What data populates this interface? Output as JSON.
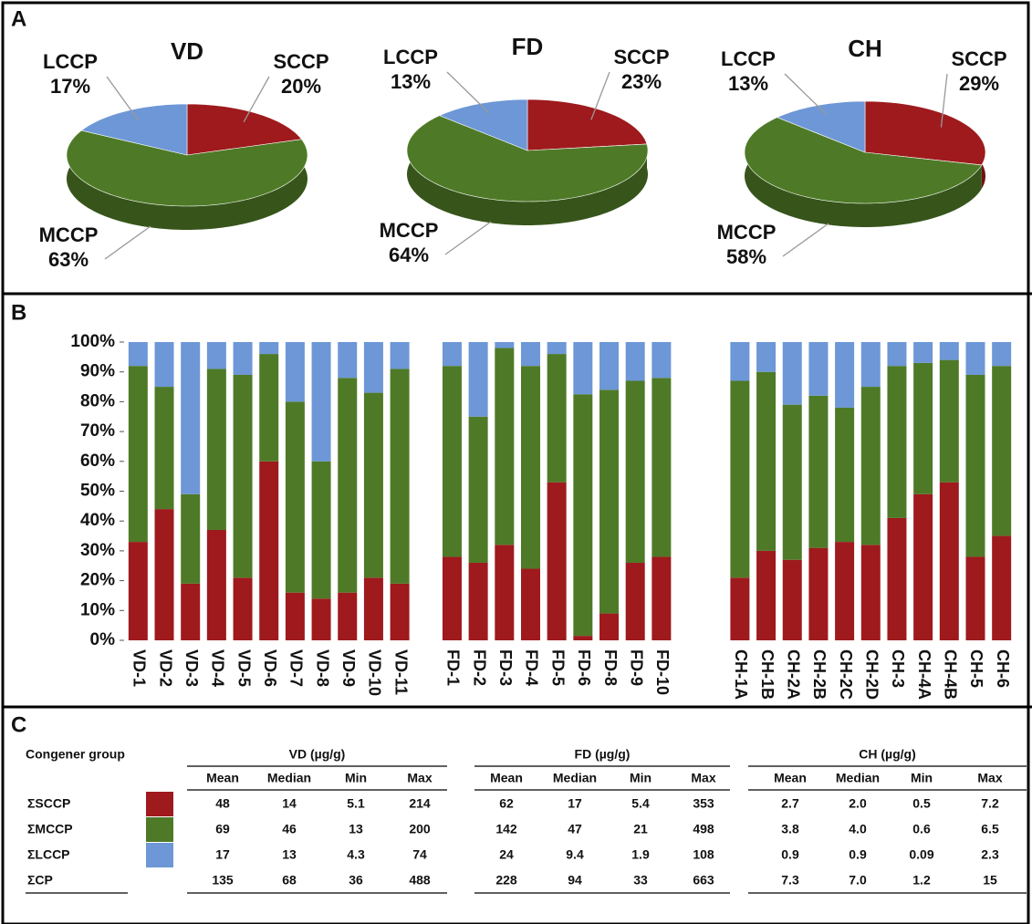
{
  "panels": [
    "A",
    "B",
    "C"
  ],
  "chart_data": [
    {
      "type": "pie",
      "title": "VD",
      "categories": [
        "SCCP",
        "MCCP",
        "LCCP"
      ],
      "values": [
        20,
        63,
        17
      ],
      "value_labels": [
        "20%",
        "63%",
        "17%"
      ],
      "colors": [
        "#9e1a1d",
        "#4e7a27",
        "#6d97d6"
      ]
    },
    {
      "type": "pie",
      "title": "FD",
      "categories": [
        "SCCP",
        "MCCP",
        "LCCP"
      ],
      "values": [
        23,
        64,
        13
      ],
      "value_labels": [
        "23%",
        "64%",
        "13%"
      ],
      "colors": [
        "#9e1a1d",
        "#4e7a27",
        "#6d97d6"
      ]
    },
    {
      "type": "pie",
      "title": "CH",
      "categories": [
        "SCCP",
        "MCCP",
        "LCCP"
      ],
      "values": [
        29,
        58,
        13
      ],
      "value_labels": [
        "29%",
        "58%",
        "13%"
      ],
      "colors": [
        "#9e1a1d",
        "#4e7a27",
        "#6d97d6"
      ]
    },
    {
      "type": "bar",
      "stacked": true,
      "categories": [
        "VD-1",
        "VD-2",
        "VD-3",
        "VD-4",
        "VD-5",
        "VD-6",
        "VD-7",
        "VD-8",
        "VD-9",
        "VD-10",
        "VD-11",
        null,
        "FD-1",
        "FD-2",
        "FD-3",
        "FD-4",
        "FD-5",
        "FD-6",
        "FD-8",
        "FD-9",
        "FD-10",
        null,
        null,
        "CH-1A",
        "CH-1B",
        "CH-2A",
        "CH-2B",
        "CH-2C",
        "CH-2D",
        "CH-3",
        "CH-4A",
        "CH-4B",
        "CH-5",
        "CH-6"
      ],
      "series": [
        {
          "color": "#9e1a1d",
          "values": [
            33,
            44,
            19,
            37,
            21,
            60,
            16,
            14,
            16,
            21,
            19,
            null,
            28,
            26,
            32,
            24,
            53,
            1.5,
            9,
            26,
            28,
            null,
            null,
            21,
            30,
            27,
            31,
            33,
            32,
            41,
            49,
            53,
            28,
            35
          ]
        },
        {
          "color": "#4e7a27",
          "values": [
            59,
            41,
            30,
            54,
            68,
            36,
            64,
            46,
            72,
            62,
            72,
            null,
            64,
            49,
            66,
            68,
            43,
            81,
            75,
            61,
            60,
            null,
            null,
            66,
            60,
            52,
            51,
            45,
            53,
            51,
            44,
            41,
            61,
            57
          ]
        },
        {
          "color": "#6d97d6",
          "values": [
            8,
            15,
            51,
            9,
            11,
            4,
            20,
            40,
            12,
            17,
            9,
            null,
            8,
            25,
            2,
            8,
            4,
            17.5,
            16,
            13,
            12,
            null,
            null,
            13,
            10,
            21,
            18,
            22,
            15,
            8,
            7,
            6,
            11,
            8
          ]
        }
      ],
      "ylim": [
        0,
        100
      ],
      "yticks": [
        {
          "value": 0,
          "label": "0%"
        },
        {
          "value": 10,
          "label": "10%"
        },
        {
          "value": 20,
          "label": "20%"
        },
        {
          "value": 30,
          "label": "30%"
        },
        {
          "value": 40,
          "label": "40%"
        },
        {
          "value": 50,
          "label": "50%"
        },
        {
          "value": 60,
          "label": "60%"
        },
        {
          "value": 70,
          "label": "70%"
        },
        {
          "value": 80,
          "label": "80%"
        },
        {
          "value": 90,
          "label": "90%"
        },
        {
          "value": 100,
          "label": "100%"
        }
      ]
    }
  ],
  "table": {
    "header": "Congener group",
    "groups": [
      {
        "name": "VD (µg/g)",
        "columns": [
          "Mean",
          "Median",
          "Min",
          "Max"
        ]
      },
      {
        "name": "FD (µg/g)",
        "columns": [
          "Mean",
          "Median",
          "Min",
          "Max"
        ]
      },
      {
        "name": "CH (µg/g)",
        "columns": [
          "Mean",
          "Median",
          "Min",
          "Max"
        ]
      }
    ],
    "rows": [
      {
        "label": "ΣSCCP",
        "color": "#9e1a1d",
        "cells": [
          "48",
          "14",
          "5.1",
          "214",
          "62",
          "17",
          "5.4",
          "353",
          "2.7",
          "2.0",
          "0.5",
          "7.2"
        ]
      },
      {
        "label": "ΣMCCP",
        "color": "#4e7a27",
        "cells": [
          "69",
          "46",
          "13",
          "200",
          "142",
          "47",
          "21",
          "498",
          "3.8",
          "4.0",
          "0.6",
          "6.5"
        ]
      },
      {
        "label": "ΣLCCP",
        "color": "#6d97d6",
        "cells": [
          "17",
          "13",
          "4.3",
          "74",
          "24",
          "9.4",
          "1.9",
          "108",
          "0.9",
          "0.9",
          "0.09",
          "2.3"
        ]
      },
      {
        "label": "ΣCP",
        "cells": [
          "135",
          "68",
          "36",
          "488",
          "228",
          "94",
          "33",
          "663",
          "7.3",
          "7.0",
          "1.2",
          "15"
        ]
      }
    ]
  }
}
